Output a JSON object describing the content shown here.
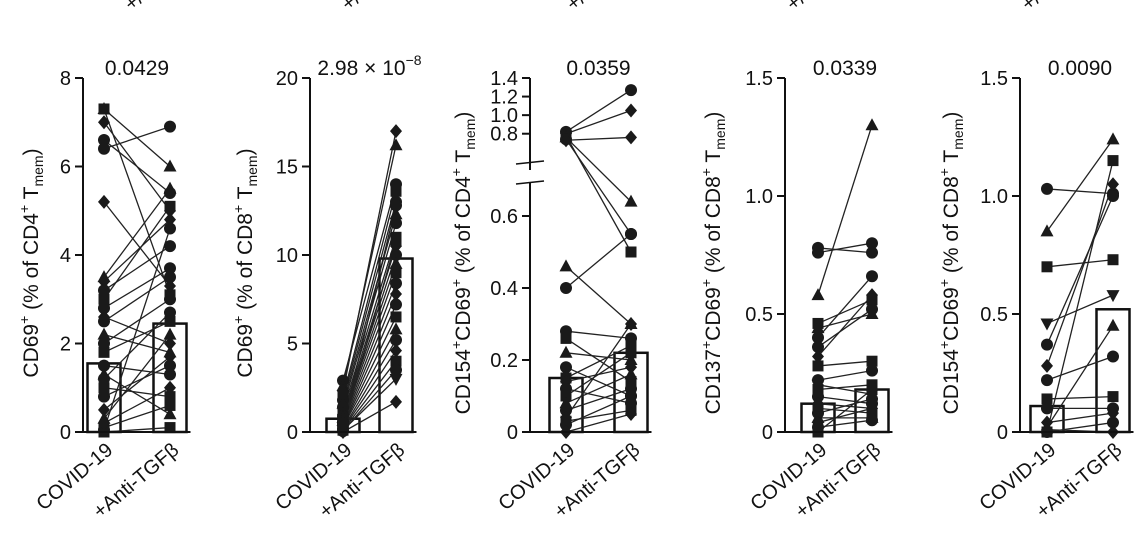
{
  "figure": {
    "top_clipped_labels": [
      "+/",
      "+/",
      "+/",
      "+/",
      "+/"
    ],
    "x_categories": [
      "COVID-19",
      "+Anti-TGFβ"
    ]
  },
  "chart_data": [
    {
      "type": "bar",
      "subtype": "paired-dot-bar",
      "categories": [
        "COVID-19",
        "+Anti-TGFβ"
      ],
      "values": [
        1.55,
        2.45
      ],
      "p_value": "0.0429",
      "ylabel_parts": {
        "main": "CD69",
        "sup": "+",
        "paren": " (% of CD4",
        "sup2": "+",
        "t": " T",
        "sub": "mem",
        "close": ")"
      },
      "ylim": [
        0,
        8
      ],
      "yticks": [
        0,
        2,
        4,
        6,
        8
      ],
      "ytick_labels": [
        "0",
        "2",
        "4",
        "6",
        "8"
      ],
      "axis_break": null,
      "pairs": [
        {
          "shape": "square",
          "y": [
            7.3,
            3.1
          ]
        },
        {
          "shape": "triangle",
          "y": [
            7.3,
            6.0
          ]
        },
        {
          "shape": "diamond",
          "y": [
            7.0,
            5.0
          ]
        },
        {
          "shape": "circle",
          "y": [
            6.6,
            5.4
          ]
        },
        {
          "shape": "circle",
          "y": [
            6.4,
            6.9
          ]
        },
        {
          "shape": "diamond",
          "y": [
            5.2,
            3.3
          ]
        },
        {
          "shape": "triangle",
          "y": [
            3.5,
            5.5
          ]
        },
        {
          "shape": "diamond",
          "y": [
            3.4,
            4.8
          ]
        },
        {
          "shape": "circle",
          "y": [
            3.2,
            4.2
          ]
        },
        {
          "shape": "square",
          "y": [
            3.0,
            5.1
          ]
        },
        {
          "shape": "circle",
          "y": [
            2.8,
            3.7
          ]
        },
        {
          "shape": "diamond",
          "y": [
            2.6,
            2.0
          ]
        },
        {
          "shape": "circle",
          "y": [
            2.5,
            3.5
          ]
        },
        {
          "shape": "triangle",
          "y": [
            2.2,
            1.8
          ]
        },
        {
          "shape": "circle",
          "y": [
            2.0,
            3.0
          ]
        },
        {
          "shape": "square",
          "y": [
            1.8,
            2.5
          ]
        },
        {
          "shape": "circle",
          "y": [
            1.5,
            1.3
          ]
        },
        {
          "shape": "triangle",
          "y": [
            1.3,
            0.4
          ]
        },
        {
          "shape": "circle",
          "y": [
            1.2,
            2.7
          ]
        },
        {
          "shape": "square",
          "y": [
            1.0,
            0.8
          ]
        },
        {
          "shape": "circle",
          "y": [
            0.8,
            1.5
          ]
        },
        {
          "shape": "diamond",
          "y": [
            0.5,
            1.7
          ]
        },
        {
          "shape": "triangle",
          "y": [
            0.3,
            2.2
          ]
        },
        {
          "shape": "square",
          "y": [
            0.1,
            0.6
          ]
        },
        {
          "shape": "circle",
          "y": [
            0.05,
            4.6
          ]
        },
        {
          "shape": "square",
          "y": [
            0.0,
            0.1
          ]
        },
        {
          "shape": "diamond",
          "y": [
            0.2,
            1.0
          ]
        }
      ]
    },
    {
      "type": "bar",
      "subtype": "paired-dot-bar",
      "categories": [
        "COVID-19",
        "+Anti-TGFβ"
      ],
      "values": [
        0.75,
        9.8
      ],
      "p_value": "2.98 × 10",
      "p_value_exp": "−8",
      "ylabel_parts": {
        "main": "CD69",
        "sup": "+",
        "paren": " (% of CD8",
        "sup2": "+",
        "t": " T",
        "sub": "mem",
        "close": ")"
      },
      "ylim": [
        0,
        20
      ],
      "yticks": [
        0,
        5,
        10,
        15,
        20
      ],
      "ytick_labels": [
        "0",
        "5",
        "10",
        "15",
        "20"
      ],
      "axis_break": null,
      "pairs": [
        {
          "shape": "circle",
          "y": [
            2.9,
            14.0
          ]
        },
        {
          "shape": "triangle",
          "y": [
            2.6,
            16.2
          ]
        },
        {
          "shape": "diamond",
          "y": [
            2.3,
            17.0
          ]
        },
        {
          "shape": "square",
          "y": [
            2.0,
            13.6
          ]
        },
        {
          "shape": "circle",
          "y": [
            1.8,
            13.0
          ]
        },
        {
          "shape": "triangle",
          "y": [
            1.6,
            12.3
          ]
        },
        {
          "shape": "circle",
          "y": [
            1.4,
            11.8
          ]
        },
        {
          "shape": "square",
          "y": [
            1.2,
            11.0
          ]
        },
        {
          "shape": "diamond",
          "y": [
            1.0,
            10.5
          ]
        },
        {
          "shape": "circle",
          "y": [
            0.9,
            10.0
          ]
        },
        {
          "shape": "triangle",
          "y": [
            0.8,
            9.5
          ]
        },
        {
          "shape": "square",
          "y": [
            0.7,
            9.0
          ]
        },
        {
          "shape": "circle",
          "y": [
            0.6,
            8.4
          ]
        },
        {
          "shape": "diamond",
          "y": [
            0.5,
            7.8
          ]
        },
        {
          "shape": "circle",
          "y": [
            0.4,
            7.2
          ]
        },
        {
          "shape": "square",
          "y": [
            0.35,
            6.5
          ]
        },
        {
          "shape": "triangle",
          "y": [
            0.3,
            5.8
          ]
        },
        {
          "shape": "circle",
          "y": [
            0.2,
            5.2
          ]
        },
        {
          "shape": "diamond",
          "y": [
            0.15,
            4.6
          ]
        },
        {
          "shape": "square",
          "y": [
            0.1,
            4.0
          ]
        },
        {
          "shape": "triangle-down",
          "y": [
            0.1,
            3.0
          ]
        },
        {
          "shape": "circle",
          "y": [
            0.05,
            3.5
          ]
        },
        {
          "shape": "diamond",
          "y": [
            0.0,
            1.7
          ]
        },
        {
          "shape": "circle",
          "y": [
            0.5,
            12.8
          ]
        },
        {
          "shape": "square",
          "y": [
            0.3,
            10.8
          ]
        }
      ]
    },
    {
      "type": "bar",
      "subtype": "paired-dot-bar",
      "categories": [
        "COVID-19",
        "+Anti-TGFβ"
      ],
      "values": [
        0.15,
        0.22
      ],
      "p_value": "0.0359",
      "ylabel_parts": {
        "main": "CD154",
        "sup": "+",
        "main2": "CD69",
        "sup1b": "+",
        "paren": " (% of CD4",
        "sup2": "+",
        "t": " T",
        "sub": "mem",
        "close": ")"
      },
      "ylim": [
        0,
        1.4
      ],
      "yticks": [
        0,
        0.2,
        0.4,
        0.6,
        0.8,
        1.0,
        1.2,
        1.4
      ],
      "ytick_labels": [
        "0",
        "0.2",
        "0.4",
        "0.6",
        "0.8",
        "1.0",
        "1.2",
        "1.4"
      ],
      "axis_break": {
        "low_max": 0.7,
        "high_min": 0.7,
        "high_max": 1.4
      },
      "pairs": [
        {
          "shape": "circle",
          "y": [
            0.82,
            1.27
          ]
        },
        {
          "shape": "diamond",
          "y": [
            0.8,
            1.05
          ]
        },
        {
          "shape": "square",
          "y": [
            0.78,
            0.5
          ]
        },
        {
          "shape": "triangle",
          "y": [
            0.76,
            0.64
          ]
        },
        {
          "shape": "circle",
          "y": [
            0.74,
            0.55
          ]
        },
        {
          "shape": "diamond",
          "y": [
            0.73,
            0.76
          ]
        },
        {
          "shape": "triangle",
          "y": [
            0.46,
            0.3
          ]
        },
        {
          "shape": "circle",
          "y": [
            0.4,
            0.55
          ]
        },
        {
          "shape": "circle",
          "y": [
            0.28,
            0.26
          ]
        },
        {
          "shape": "square",
          "y": [
            0.26,
            0.14
          ]
        },
        {
          "shape": "triangle",
          "y": [
            0.22,
            0.2
          ]
        },
        {
          "shape": "circle",
          "y": [
            0.18,
            0.1
          ]
        },
        {
          "shape": "square",
          "y": [
            0.15,
            0.24
          ]
        },
        {
          "shape": "diamond",
          "y": [
            0.14,
            0.18
          ]
        },
        {
          "shape": "circle",
          "y": [
            0.12,
            0.08
          ]
        },
        {
          "shape": "square",
          "y": [
            0.1,
            0.22
          ]
        },
        {
          "shape": "triangle",
          "y": [
            0.08,
            0.16
          ]
        },
        {
          "shape": "circle",
          "y": [
            0.06,
            0.12
          ]
        },
        {
          "shape": "diamond",
          "y": [
            0.04,
            0.3
          ]
        },
        {
          "shape": "square",
          "y": [
            0.03,
            0.06
          ]
        },
        {
          "shape": "circle",
          "y": [
            0.02,
            0.1
          ]
        },
        {
          "shape": "diamond",
          "y": [
            0.0,
            0.05
          ]
        }
      ]
    },
    {
      "type": "bar",
      "subtype": "paired-dot-bar",
      "categories": [
        "COVID-19",
        "+Anti-TGFβ"
      ],
      "values": [
        0.12,
        0.18
      ],
      "p_value": "0.0339",
      "ylabel_parts": {
        "main": "CD137",
        "sup": "+",
        "main2": "CD69",
        "sup1b": "+",
        "paren": " (% of CD8",
        "sup2": "+",
        "t": " T",
        "sub": "mem",
        "close": ")"
      },
      "ylim": [
        0,
        1.5
      ],
      "yticks": [
        0,
        0.5,
        1.0,
        1.5
      ],
      "ytick_labels": [
        "0",
        "0.5",
        "1.0",
        "1.5"
      ],
      "axis_break": null,
      "pairs": [
        {
          "shape": "circle",
          "y": [
            0.78,
            0.76
          ]
        },
        {
          "shape": "circle",
          "y": [
            0.76,
            0.8
          ]
        },
        {
          "shape": "triangle",
          "y": [
            0.58,
            1.3
          ]
        },
        {
          "shape": "square",
          "y": [
            0.46,
            0.56
          ]
        },
        {
          "shape": "triangle",
          "y": [
            0.44,
            0.5
          ]
        },
        {
          "shape": "circle",
          "y": [
            0.4,
            0.66
          ]
        },
        {
          "shape": "circle",
          "y": [
            0.36,
            0.52
          ]
        },
        {
          "shape": "diamond",
          "y": [
            0.32,
            0.58
          ]
        },
        {
          "shape": "square",
          "y": [
            0.28,
            0.3
          ]
        },
        {
          "shape": "circle",
          "y": [
            0.22,
            0.26
          ]
        },
        {
          "shape": "triangle-down",
          "y": [
            0.2,
            0.16
          ]
        },
        {
          "shape": "square",
          "y": [
            0.18,
            0.2
          ]
        },
        {
          "shape": "circle",
          "y": [
            0.15,
            0.12
          ]
        },
        {
          "shape": "diamond",
          "y": [
            0.12,
            0.1
          ]
        },
        {
          "shape": "square",
          "y": [
            0.1,
            0.08
          ]
        },
        {
          "shape": "circle",
          "y": [
            0.08,
            0.14
          ]
        },
        {
          "shape": "triangle",
          "y": [
            0.06,
            0.06
          ]
        },
        {
          "shape": "diamond",
          "y": [
            0.04,
            0.1
          ]
        },
        {
          "shape": "circle",
          "y": [
            0.02,
            0.05
          ]
        },
        {
          "shape": "square",
          "y": [
            0.0,
            0.18
          ]
        }
      ]
    },
    {
      "type": "bar",
      "subtype": "paired-dot-bar",
      "categories": [
        "COVID-19",
        "+Anti-TGFβ"
      ],
      "values": [
        0.11,
        0.52
      ],
      "p_value": "0.0090",
      "ylabel_parts": {
        "main": "CD154",
        "sup": "+",
        "main2": "CD69",
        "sup1b": "+",
        "paren": " (% of CD8",
        "sup2": "+",
        "t": " T",
        "sub": "mem",
        "close": ")"
      },
      "ylim": [
        0,
        1.5
      ],
      "yticks": [
        0,
        0.5,
        1.0,
        1.5
      ],
      "ytick_labels": [
        "0",
        "0.5",
        "1.0",
        "1.5"
      ],
      "axis_break": null,
      "pairs": [
        {
          "shape": "circle",
          "y": [
            1.03,
            1.01
          ]
        },
        {
          "shape": "triangle",
          "y": [
            0.85,
            1.24
          ]
        },
        {
          "shape": "square",
          "y": [
            0.7,
            0.73
          ]
        },
        {
          "shape": "triangle-down",
          "y": [
            0.46,
            0.58
          ]
        },
        {
          "shape": "circle",
          "y": [
            0.37,
            1.0
          ]
        },
        {
          "shape": "diamond",
          "y": [
            0.28,
            1.05
          ]
        },
        {
          "shape": "circle",
          "y": [
            0.22,
            0.32
          ]
        },
        {
          "shape": "square",
          "y": [
            0.14,
            0.15
          ]
        },
        {
          "shape": "circle",
          "y": [
            0.1,
            0.1
          ]
        },
        {
          "shape": "diamond",
          "y": [
            0.04,
            0.08
          ]
        },
        {
          "shape": "square",
          "y": [
            0.0,
            1.15
          ]
        },
        {
          "shape": "triangle",
          "y": [
            0.02,
            0.45
          ]
        },
        {
          "shape": "circle",
          "y": [
            0.0,
            0.04
          ]
        },
        {
          "shape": "diamond",
          "y": [
            0.01,
            0.0
          ]
        }
      ]
    }
  ]
}
